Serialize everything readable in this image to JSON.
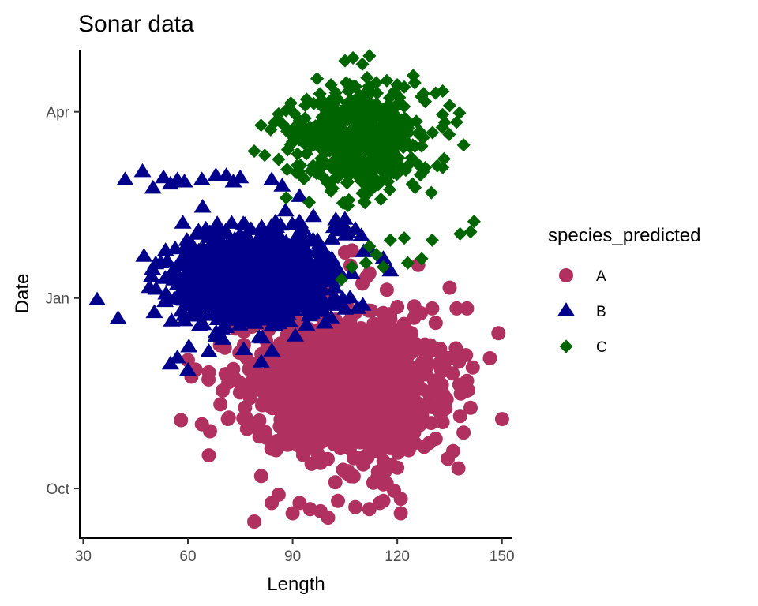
{
  "chart_data": {
    "type": "scatter",
    "title": "Sonar data",
    "xlabel": "Length",
    "ylabel": "Date",
    "xlim": [
      29,
      153
    ],
    "ylim": [
      "2000-09-07",
      "2001-05-01"
    ],
    "x_ticks": [
      30,
      60,
      90,
      120,
      150
    ],
    "y_ticks": [
      {
        "label": "Oct",
        "date": "2000-10-01"
      },
      {
        "label": "Jan",
        "date": "2001-01-01"
      },
      {
        "label": "Apr",
        "date": "2001-04-01"
      }
    ],
    "grid": false,
    "legend": {
      "title": "species_predicted",
      "position": "right"
    },
    "series": [
      {
        "name": "A",
        "shape": "circle",
        "color": "#B03060",
        "center": {
          "length": 104,
          "date": "2000-11-20"
        },
        "spread": {
          "length": 13,
          "days": 17
        },
        "n": 1300,
        "x": [
          149,
          141,
          140,
          138,
          131,
          130,
          137,
          140,
          135,
          139,
          133,
          136,
          131,
          125,
          120,
          116,
          113,
          121,
          115,
          58,
          61,
          64,
          66,
          79,
          81,
          84,
          86,
          90,
          92,
          95,
          98,
          103,
          108,
          112,
          116,
          121,
          117,
          110,
          101,
          94,
          106,
          126,
          112,
          107,
          105,
          99,
          95,
          60
        ],
        "y": [
          "2000-12-15",
          "2000-11-09",
          "2000-11-22",
          "2000-11-05",
          "2000-12-20",
          "2000-12-27",
          "2000-12-27",
          "2000-12-27",
          "2001-01-06",
          "2000-10-28",
          "2000-11-02",
          "2000-10-19",
          "2000-10-25",
          "2000-10-23",
          "2000-10-11",
          "2000-10-03",
          "2000-10-19",
          "2000-09-26",
          "2000-09-24",
          "2000-11-03",
          "2000-11-24",
          "2000-11-01",
          "2000-10-17",
          "2000-09-15",
          "2000-10-07",
          "2000-09-24",
          "2000-09-28",
          "2000-09-19",
          "2000-09-24",
          "2000-09-21",
          "2000-09-20",
          "2000-09-25",
          "2000-09-22",
          "2000-09-21",
          "2000-09-25",
          "2000-09-19",
          "2001-01-05",
          "2001-01-08",
          "2001-01-04",
          "2001-01-03",
          "2000-12-27",
          "2001-01-17",
          "2001-01-13",
          "2001-01-24",
          "2001-01-23",
          "2001-01-19",
          "2001-01-12",
          "2000-12-02"
        ]
      },
      {
        "name": "B",
        "shape": "triangle",
        "color": "#00008B",
        "center": {
          "length": 79,
          "date": "2001-01-11"
        },
        "spread": {
          "length": 11,
          "days": 11
        },
        "n": 1100,
        "x": [
          34,
          40,
          42,
          47,
          50,
          49,
          53,
          55,
          57,
          59,
          64,
          68,
          73,
          75,
          84,
          87,
          57,
          55,
          60,
          66,
          70,
          76,
          81,
          71,
          88,
          92,
          105,
          108,
          112,
          116,
          118,
          98,
          102
        ],
        "y": [
          "2000-12-31",
          "2000-12-22",
          "2001-02-27",
          "2001-03-03",
          "2001-02-23",
          "2001-01-06",
          "2001-02-28",
          "2001-02-25",
          "2001-02-27",
          "2001-02-26",
          "2001-02-27",
          "2001-03-01",
          "2001-02-26",
          "2001-02-28",
          "2001-02-27",
          "2001-02-24",
          "2000-12-03",
          "2000-11-30",
          "2000-11-27",
          "2000-12-06",
          "2000-12-12",
          "2000-12-07",
          "2000-12-01",
          "2001-03-01",
          "2001-02-12",
          "2001-02-19",
          "2001-02-08",
          "2001-02-03",
          "2001-01-25",
          "2001-01-20",
          "2001-01-14",
          "2001-01-02",
          "2001-01-12"
        ]
      },
      {
        "name": "C",
        "shape": "diamond",
        "color": "#006400",
        "center": {
          "length": 109,
          "date": "2001-03-18"
        },
        "spread": {
          "length": 9,
          "days": 12
        },
        "n": 550,
        "x": [
          79,
          82,
          86,
          90,
          94,
          97,
          101,
          103,
          106,
          108,
          110,
          112,
          114,
          117,
          120,
          122,
          125,
          128,
          131,
          133,
          135,
          137,
          139,
          141,
          142,
          138,
          130,
          127,
          122,
          118,
          114,
          111,
          107,
          104,
          123,
          128,
          116,
          112
        ],
        "y": [
          "2001-03-13",
          "2001-03-11",
          "2001-03-09",
          "2001-03-20",
          "2001-04-07",
          "2001-04-17",
          "2001-04-14",
          "2001-04-07",
          "2001-04-11",
          "2001-04-13",
          "2001-04-24",
          "2001-04-28",
          "2001-04-15",
          "2001-04-16",
          "2001-04-14",
          "2001-04-13",
          "2001-04-15",
          "2001-04-06",
          "2001-04-10",
          "2001-04-11",
          "2001-04-04",
          "2001-03-27",
          "2001-03-16",
          "2001-02-02",
          "2001-02-07",
          "2001-02-01",
          "2001-01-29",
          "2001-01-20",
          "2001-01-30",
          "2001-01-29",
          "2001-01-22",
          "2001-01-18",
          "2001-01-16",
          "2001-01-10",
          "2001-01-18",
          "2001-03-05",
          "2001-01-16",
          "2001-01-26"
        ]
      }
    ]
  }
}
